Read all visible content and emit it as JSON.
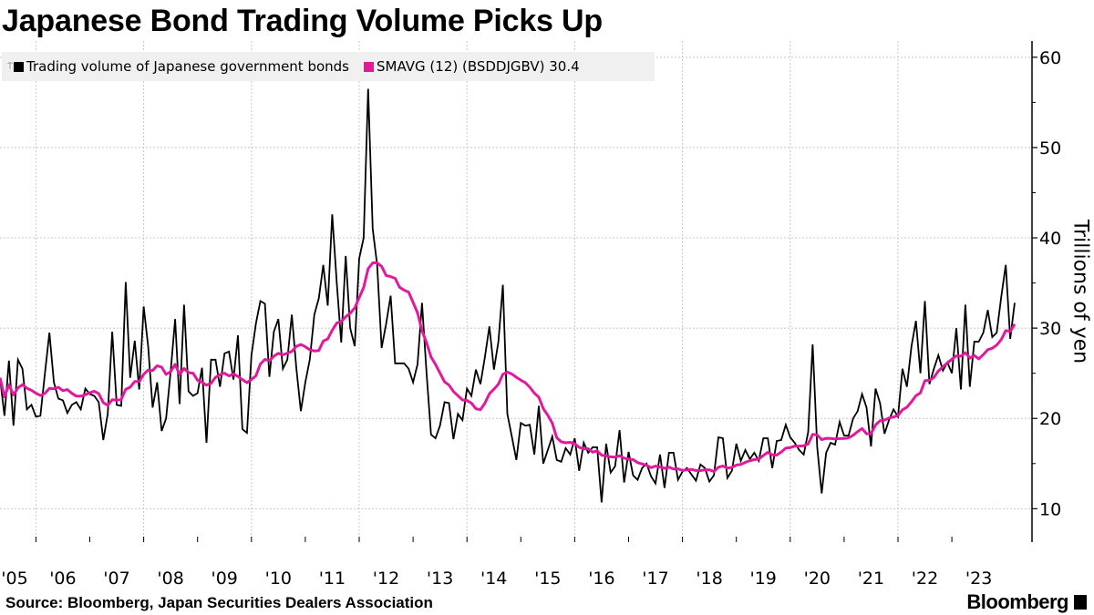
{
  "title": "Japanese Bond Trading Volume Picks Up",
  "legend": {
    "series1": "Trading volume of Japanese government bonds",
    "series2": "SMAVG (12) (BSDDJGBV) 30.4"
  },
  "source": "Source: Bloomberg, Japan Securities Dealers Association",
  "logo": "Bloomberg",
  "chart_data": {
    "type": "line",
    "title": "Japanese Bond Trading Volume Picks Up",
    "ylabel": "Trillions of yen",
    "xlabel": "",
    "y_axis_side": "right",
    "ylim": [
      6.3,
      61.8
    ],
    "yticks": [
      10,
      20,
      30,
      40,
      50,
      60
    ],
    "ytick_labels": [
      "10",
      "20",
      "30",
      "40",
      "50",
      "60"
    ],
    "xtick_labels": [
      "'05",
      "'06",
      "'07",
      "'08",
      "'09",
      "'10",
      "'11",
      "'12",
      "'13",
      "'14",
      "'15",
      "'16",
      "'17",
      "'18",
      "'19",
      "'20",
      "'21",
      "'22",
      "'23"
    ],
    "x_start": "2005-05",
    "x_end": "2024-03",
    "frequency": "monthly",
    "grid": true,
    "legend_position": "top-left",
    "colors": {
      "volume": "#000000",
      "sma": "#e2199b",
      "grid": "#c8c8c8"
    },
    "series": [
      {
        "name": "Trading volume of Japanese government bonds",
        "values": [
          24.5,
          20.3,
          26.4,
          19.2,
          26.5,
          25.5,
          21,
          21.5,
          20.2,
          20.3,
          25,
          29.5,
          24,
          22.2,
          22,
          20.6,
          21.5,
          21.8,
          21,
          23.3,
          22.7,
          22.5,
          21.8,
          17.6,
          20.5,
          29.6,
          21.5,
          21.4,
          35.1,
          24.5,
          28.6,
          23.2,
          32.4,
          28,
          21.2,
          24,
          18.6,
          20,
          25.2,
          31,
          21.6,
          32.6,
          23,
          22.5,
          22.8,
          25.6,
          17.3,
          26.5,
          26.5,
          23.5,
          27.2,
          27.4,
          24.3,
          29.2,
          18.8,
          18.4,
          27,
          30.5,
          33,
          32.7,
          24.6,
          29.6,
          31,
          25.5,
          26.5,
          31.5,
          25.5,
          20.8,
          24,
          26.5,
          31.5,
          33.3,
          37,
          32.5,
          42.6,
          35,
          28.4,
          38,
          30,
          28,
          37.7,
          40,
          56.5,
          41,
          37,
          27.8,
          30.5,
          33.6,
          26.1,
          26.1,
          26.1,
          25.5,
          24,
          26,
          32.8,
          25,
          18.2,
          17.8,
          19.2,
          21.8,
          21.7,
          17.7,
          20.5,
          19.8,
          23.3,
          22.5,
          25.4,
          23.8,
          26.8,
          30.2,
          25.4,
          28.5,
          34.8,
          20.5,
          18,
          15.4,
          19.5,
          19.2,
          19.3,
          16,
          21.4,
          15,
          16.5,
          18,
          15.4,
          15.2,
          16.7,
          16,
          17.8,
          14.2,
          17.3,
          16.2,
          16.8,
          16.8,
          10.7,
          17.2,
          14,
          14.7,
          18.7,
          12.9,
          16.3,
          13.7,
          13.2,
          14.5,
          15,
          13.6,
          12.8,
          16,
          12.3,
          16.2,
          16.2,
          13.2,
          14.1,
          14.5,
          13.8,
          13.1,
          14.9,
          14.5,
          13,
          13.7,
          17.9,
          17.8,
          13.4,
          14.2,
          17.2,
          15.3,
          16.5,
          15.5,
          16.2,
          15.3,
          17.8,
          17.8,
          14.5,
          17.5,
          17.6,
          19.3,
          17.9,
          17.3,
          16.5,
          16,
          18.5,
          28.2,
          16.8,
          11.7,
          16.2,
          17.3,
          17.1,
          19.6,
          18.1,
          18.1,
          20,
          20.8,
          22.7,
          21.2,
          16.9,
          23.3,
          21.7,
          18.3,
          19.8,
          21,
          20.2,
          25.5,
          23.5,
          28,
          30.8,
          25,
          33,
          23.8,
          25.5,
          27,
          25.3,
          26.2,
          25,
          30,
          23.2,
          32.6,
          23.5,
          28.5,
          28.5,
          29.5,
          32,
          29,
          29.5,
          33.5,
          37,
          28.8,
          32.8
        ]
      },
      {
        "name": "SMAVG (12) (BSDDJGBV)",
        "window": 12,
        "last_value": 30.4
      }
    ]
  }
}
